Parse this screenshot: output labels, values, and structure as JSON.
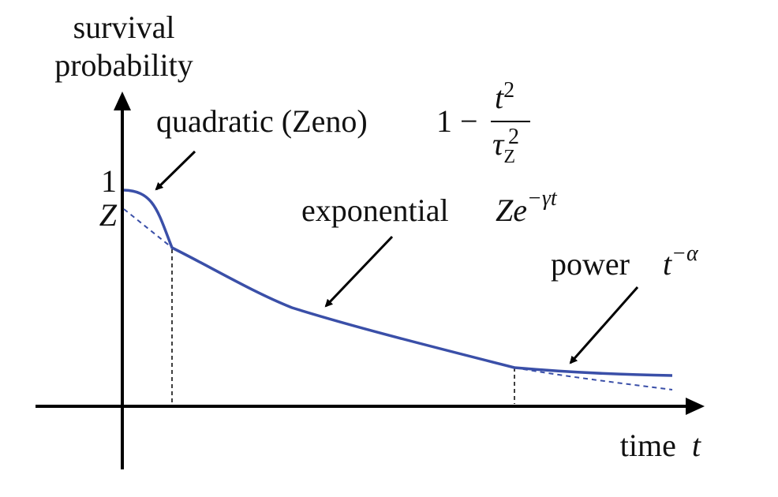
{
  "y_axis": {
    "label_line1": "survival",
    "label_line2": "probability"
  },
  "x_axis": {
    "label_text": "time",
    "label_var": "t"
  },
  "y_ticks": {
    "one": "1",
    "z": "Z"
  },
  "regions": {
    "quadratic": {
      "label": "quadratic (Zeno)",
      "formula_lead": "1 −",
      "numerator_base": "t",
      "numerator_exp": "2",
      "denominator_base": "τ",
      "denominator_sub": "Z",
      "denominator_exp": "2"
    },
    "exponential": {
      "label": "exponential",
      "formula_base": "Ze",
      "formula_exp": "−γt"
    },
    "power": {
      "label": "power",
      "formula_base": "t",
      "formula_exp": "−α"
    }
  },
  "colors": {
    "curve": "#3a4fa8",
    "axis": "#000000"
  }
}
